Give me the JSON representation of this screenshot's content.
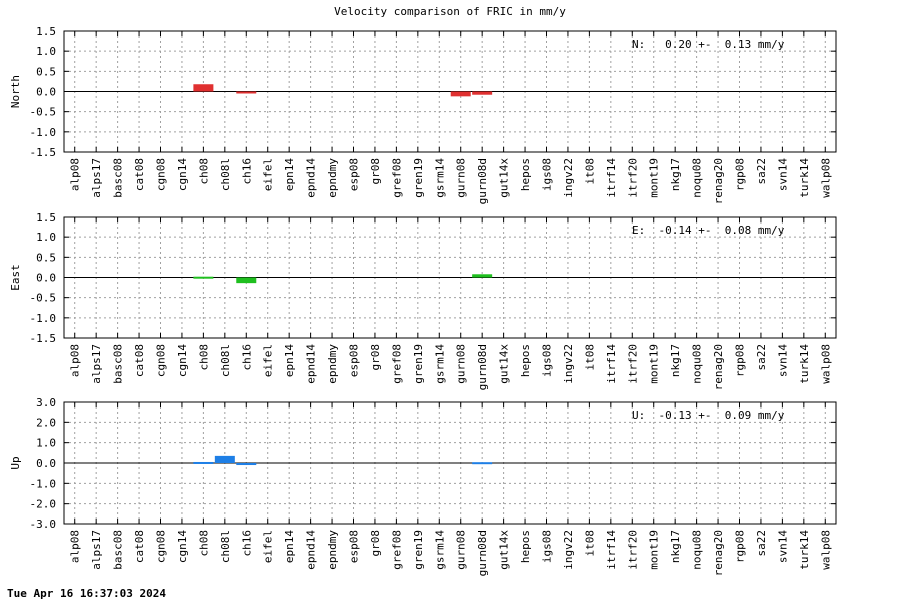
{
  "title": "Velocity comparison of FRIC in mm/y",
  "footer": {
    "timestamp": "Tue Apr 16 16:37:03 2024"
  },
  "categories": [
    "alp08",
    "alps17",
    "basc08",
    "cat08",
    "cgn08",
    "cgn14",
    "ch08",
    "ch08l",
    "ch16",
    "eifel",
    "epn14",
    "epnd14",
    "epndmy",
    "esp08",
    "gr08",
    "gref08",
    "gren19",
    "gsrm14",
    "gurn08",
    "gurn08d",
    "gut14x",
    "hepos",
    "igs08",
    "ingv22",
    "it08",
    "itrf14",
    "itrf20",
    "mont19",
    "nkg17",
    "noqu08",
    "renag20",
    "rgp08",
    "sa22",
    "svn14",
    "turk14",
    "walp08"
  ],
  "chart_data": [
    {
      "type": "bar",
      "ylabel": "North",
      "ylim": [
        -1.5,
        1.5
      ],
      "yticks": [
        "1.5",
        "1.0",
        "0.5",
        "0.0",
        "-0.5",
        "-1.0",
        "-1.5"
      ],
      "grid": true,
      "color": "#e03030",
      "summary": "N:   0.20 +-  0.13 mm/y",
      "values": {
        "ch08": 0.18,
        "ch16": -0.02,
        "gurn08": -0.12,
        "gurn08d": -0.08
      }
    },
    {
      "type": "bar",
      "ylabel": "East",
      "ylim": [
        -1.5,
        1.5
      ],
      "yticks": [
        "1.5",
        "1.0",
        "0.5",
        "0.0",
        "-0.5",
        "-1.0",
        "-1.5"
      ],
      "grid": true,
      "color": "#1fbf1f",
      "summary": "E:  -0.14 +-  0.08 mm/y",
      "values": {
        "ch08": 0.02,
        "ch16": -0.14,
        "gurn08d": 0.08
      }
    },
    {
      "type": "bar",
      "ylabel": "Up",
      "ylim": [
        -3.0,
        3.0
      ],
      "yticks": [
        "3.0",
        "2.0",
        "1.0",
        "0.0",
        "-1.0",
        "-2.0",
        "-3.0"
      ],
      "grid": true,
      "color": "#1e7fe6",
      "summary": "U:  -0.13 +-  0.09 mm/y",
      "values": {
        "ch08": 0.05,
        "ch08l": 0.35,
        "ch16": -0.1,
        "gurn08d": 0.04
      }
    }
  ]
}
